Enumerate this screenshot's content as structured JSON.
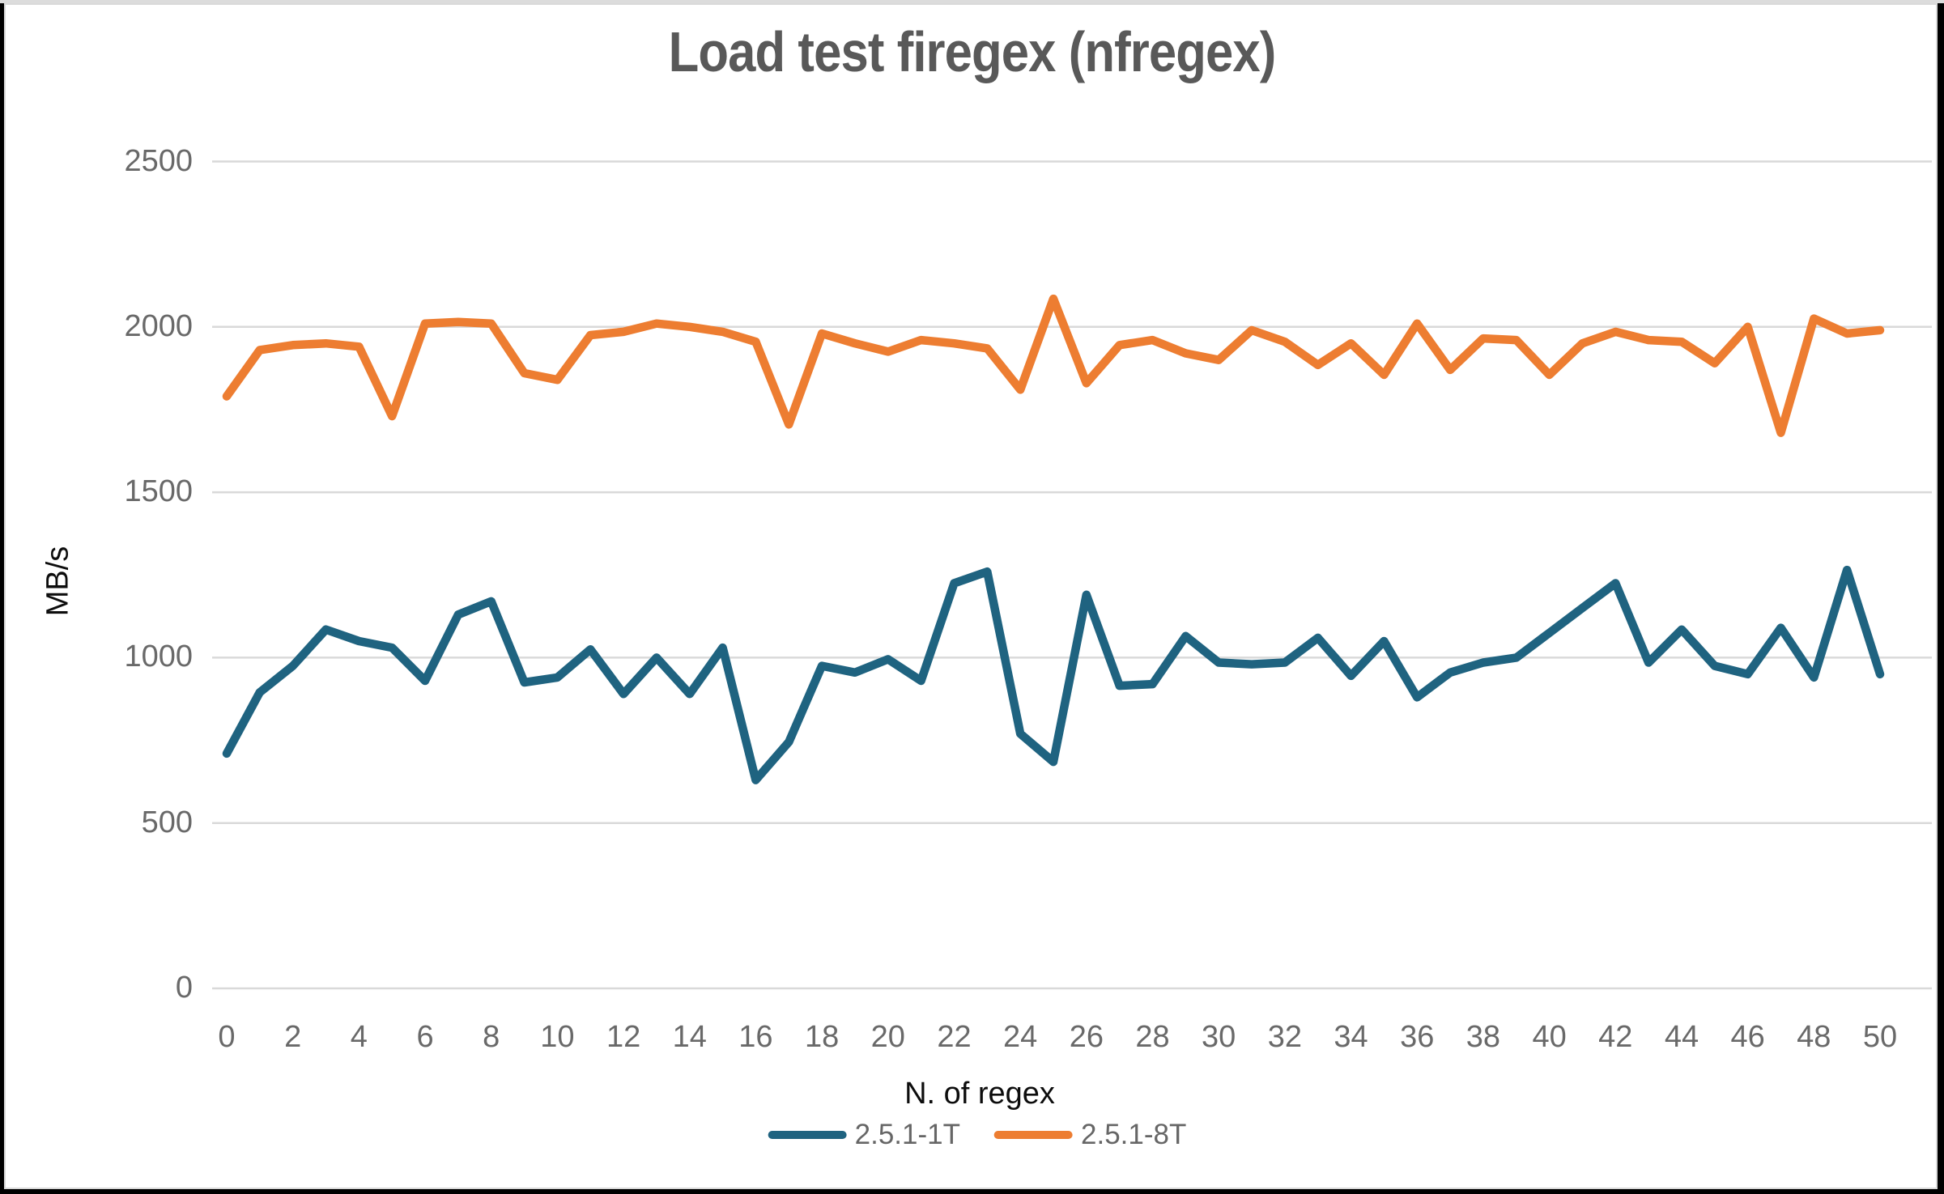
{
  "title": "Load test firegex (nfregex)",
  "colors": {
    "series_1T": "#1f6380",
    "series_8T": "#ed7d31",
    "grid": "#d9d9d9",
    "tick_text": "#696969",
    "title_text": "#595959",
    "axis_title_text": "#0d0d0d",
    "legend_text": "#666666",
    "frame_border": "#000000",
    "top_strip": "#dcdcdc",
    "background": "#ffffff"
  },
  "chart_data": {
    "type": "line",
    "title": "Load test firegex (nfregex)",
    "xlabel": "N. of regex",
    "ylabel": "MB/s",
    "x": [
      0,
      1,
      2,
      3,
      4,
      5,
      6,
      7,
      8,
      9,
      10,
      11,
      12,
      13,
      14,
      15,
      16,
      17,
      18,
      19,
      20,
      21,
      22,
      23,
      24,
      25,
      26,
      27,
      28,
      29,
      30,
      31,
      32,
      33,
      34,
      35,
      36,
      37,
      38,
      39,
      40,
      41,
      42,
      43,
      44,
      45,
      46,
      47,
      48,
      49,
      50
    ],
    "x_tick_labels": [
      0,
      2,
      4,
      6,
      8,
      10,
      12,
      14,
      16,
      18,
      20,
      22,
      24,
      26,
      28,
      30,
      32,
      34,
      36,
      38,
      40,
      42,
      44,
      46,
      48,
      50
    ],
    "y_ticks": [
      0,
      500,
      1000,
      1500,
      2000,
      2500
    ],
    "ylim": [
      0,
      2500
    ],
    "xlim": [
      0,
      50
    ],
    "grid": "horizontal",
    "legend_position": "bottom",
    "series": [
      {
        "name": "2.5.1-1T",
        "color": "#1f6380",
        "values": [
          710,
          895,
          975,
          1085,
          1050,
          1030,
          930,
          1130,
          1170,
          925,
          940,
          1025,
          890,
          1000,
          890,
          1030,
          630,
          745,
          975,
          955,
          995,
          930,
          1225,
          1260,
          770,
          685,
          1190,
          915,
          920,
          1065,
          985,
          980,
          985,
          1060,
          945,
          1050,
          880,
          955,
          985,
          1000,
          1075,
          1150,
          1225,
          985,
          1085,
          975,
          950,
          1090,
          940,
          1265,
          950
        ]
      },
      {
        "name": "2.5.1-8T",
        "color": "#ed7d31",
        "values": [
          1790,
          1930,
          1945,
          1950,
          1940,
          1730,
          2010,
          2015,
          2010,
          1860,
          1840,
          1975,
          1985,
          2010,
          2000,
          1985,
          1955,
          1705,
          1980,
          1950,
          1925,
          1960,
          1950,
          1935,
          1810,
          2085,
          1830,
          1945,
          1960,
          1920,
          1900,
          1990,
          1955,
          1885,
          1950,
          1855,
          2010,
          1870,
          1965,
          1960,
          1855,
          1950,
          1985,
          1960,
          1955,
          1890,
          2000,
          1680,
          2025,
          1980,
          1990
        ]
      }
    ]
  }
}
